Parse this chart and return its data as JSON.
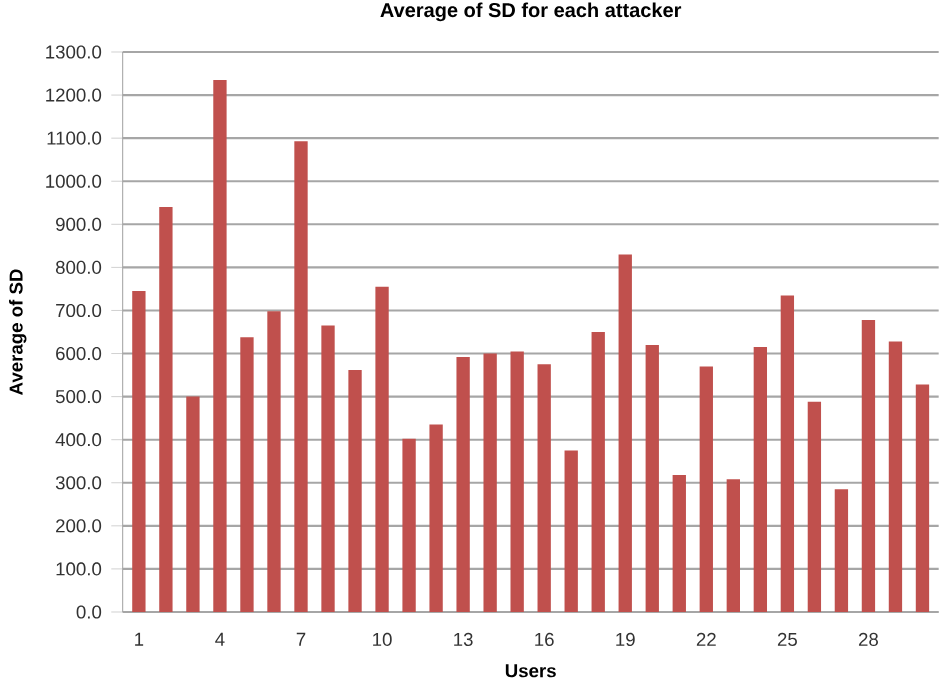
{
  "chart_data": {
    "type": "bar",
    "title": "Average of SD for each attacker",
    "xlabel": "Users",
    "ylabel": "Average of SD",
    "categories": [
      "1",
      null,
      null,
      "4",
      null,
      null,
      "7",
      null,
      null,
      "10",
      null,
      null,
      "13",
      null,
      null,
      "16",
      null,
      null,
      "19",
      null,
      null,
      "22",
      null,
      null,
      "25",
      null,
      null,
      "28",
      null,
      null
    ],
    "values": [
      745,
      940,
      500,
      1235,
      638,
      698,
      1093,
      665,
      562,
      755,
      402,
      435,
      592,
      600,
      605,
      575,
      375,
      650,
      830,
      620,
      318,
      570,
      308,
      615,
      735,
      488,
      285,
      678,
      628,
      528
    ],
    "color": "#c0504d",
    "ylim": [
      0,
      1300
    ],
    "yticks": [
      {
        "value": 0,
        "label": "0.0"
      },
      {
        "value": 100,
        "label": "100.0"
      },
      {
        "value": 200,
        "label": "200.0"
      },
      {
        "value": 300,
        "label": "300.0"
      },
      {
        "value": 400,
        "label": "400.0"
      },
      {
        "value": 500,
        "label": "500.0"
      },
      {
        "value": 600,
        "label": "600.0"
      },
      {
        "value": 700,
        "label": "700.0"
      },
      {
        "value": 800,
        "label": "800.0"
      },
      {
        "value": 900,
        "label": "900.0"
      },
      {
        "value": 1000,
        "label": "1000.0"
      },
      {
        "value": 1100,
        "label": "1100.0"
      },
      {
        "value": 1200,
        "label": "1200.0"
      },
      {
        "value": 1300,
        "label": "1300.0"
      }
    ],
    "grid": "y"
  }
}
